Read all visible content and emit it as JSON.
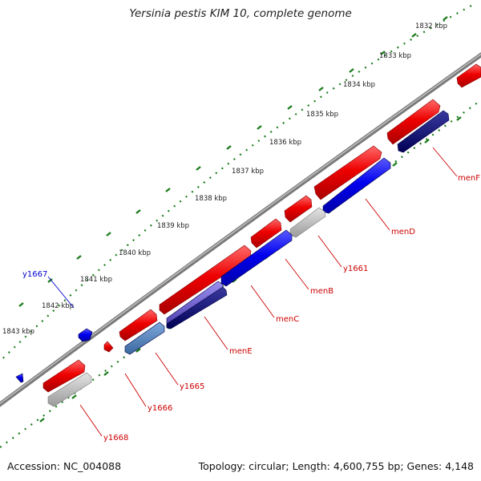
{
  "title": "Yersinia pestis KIM 10, complete genome",
  "accession": "Accession: NC_004088",
  "summary": "Topology: circular; Length: 4,600,755 bp; Genes: 4,148",
  "colors": {
    "forward_gene": "#ee0000",
    "reverse_gene": "#0000ee",
    "reverse_dark": "#000066",
    "reverse_light": "#4a7ab8",
    "reverse_purple": "#6a5cc8",
    "grey_feature": "#b8b8b8",
    "tick": "#1e7d1e",
    "backbone": "#808080",
    "label_red": "#cc0000",
    "label_blue": "#0000cc"
  },
  "kbp_ticks": [
    "1832 kbp",
    "1833 kbp",
    "1834 kbp",
    "1835 kbp",
    "1836 kbp",
    "1837 kbp",
    "1838 kbp",
    "1839 kbp",
    "1840 kbp",
    "1841 kbp",
    "1842 kbp",
    "1843 kbp"
  ],
  "gene_labels": [
    "menF",
    "menD",
    "y1661",
    "menB",
    "menC",
    "menE",
    "y1665",
    "y1666",
    "y1668",
    "y1667"
  ]
}
